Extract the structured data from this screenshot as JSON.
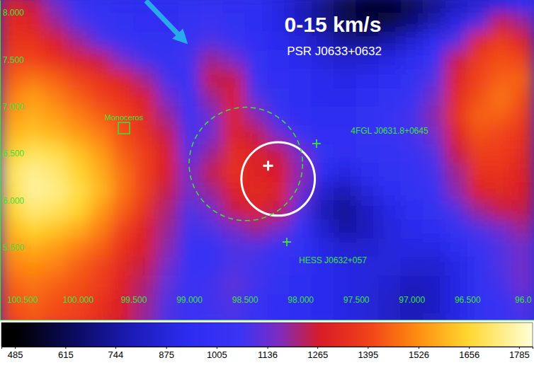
{
  "chart_data": {
    "type": "heatmap",
    "title": "0-15 km/s",
    "xlim": [
      100.7,
      95.9
    ],
    "ylim": [
      4.73,
      8.136
    ],
    "xticks": [
      {
        "value": 100.5,
        "label": "100.500"
      },
      {
        "value": 100.0,
        "label": "100.000"
      },
      {
        "value": 99.5,
        "label": "99.500"
      },
      {
        "value": 99.0,
        "label": "99.000"
      },
      {
        "value": 98.5,
        "label": "98.500"
      },
      {
        "value": 98.0,
        "label": "98.000"
      },
      {
        "value": 97.5,
        "label": "97.500"
      },
      {
        "value": 97.0,
        "label": "97.000"
      },
      {
        "value": 96.5,
        "label": "96.500"
      },
      {
        "value": 96.0,
        "label": "96.0"
      }
    ],
    "yticks": [
      {
        "value": 8.0,
        "label": "8.000"
      },
      {
        "value": 7.5,
        "label": "7.500"
      },
      {
        "value": 7.0,
        "label": "7.000"
      },
      {
        "value": 6.5,
        "label": "6.500"
      },
      {
        "value": 6.0,
        "label": "6.000"
      },
      {
        "value": 5.5,
        "label": "5.500"
      }
    ],
    "x_bins": [
      100.7,
      100.5,
      100.3,
      100.1,
      99.9,
      99.7,
      99.5,
      99.3,
      99.1,
      98.9,
      98.7,
      98.5,
      98.3,
      98.1,
      97.9,
      97.7,
      97.5,
      97.3,
      97.1,
      96.9,
      96.7,
      96.5,
      96.3,
      96.1,
      95.9
    ],
    "y_bins": [
      8.2,
      8.0,
      7.8,
      7.6,
      7.4,
      7.2,
      7.0,
      6.8,
      6.6,
      6.4,
      6.2,
      6.0,
      5.8,
      5.6,
      5.4,
      5.2,
      5.0,
      4.8,
      4.6
    ],
    "values": [
      [
        1300,
        1250,
        1150,
        1050,
        1000,
        980,
        950,
        960,
        1000,
        1020,
        980,
        950,
        900,
        800,
        700,
        600,
        560,
        560,
        620,
        700,
        800,
        850,
        900,
        950
      ],
      [
        1320,
        1300,
        1200,
        1100,
        1050,
        1000,
        980,
        980,
        1020,
        1050,
        1000,
        950,
        900,
        820,
        720,
        620,
        580,
        600,
        680,
        780,
        900,
        1100,
        1250,
        1200
      ],
      [
        1350,
        1350,
        1280,
        1200,
        1100,
        1050,
        1000,
        1000,
        1050,
        1100,
        1050,
        980,
        930,
        880,
        800,
        720,
        700,
        760,
        850,
        950,
        1100,
        1300,
        1380,
        1300
      ],
      [
        1400,
        1400,
        1350,
        1300,
        1250,
        1150,
        1080,
        1020,
        1080,
        1200,
        1150,
        1020,
        960,
        920,
        880,
        850,
        860,
        900,
        950,
        1050,
        1250,
        1380,
        1420,
        1400
      ],
      [
        1450,
        1480,
        1450,
        1400,
        1350,
        1300,
        1200,
        1080,
        1050,
        1250,
        1250,
        1050,
        980,
        950,
        920,
        900,
        920,
        950,
        1000,
        1100,
        1300,
        1400,
        1450,
        1450
      ],
      [
        1500,
        1550,
        1500,
        1450,
        1400,
        1350,
        1280,
        1150,
        1050,
        1200,
        1280,
        1100,
        1000,
        950,
        930,
        920,
        960,
        1000,
        1050,
        1150,
        1320,
        1420,
        1480,
        1420
      ],
      [
        1550,
        1580,
        1550,
        1500,
        1450,
        1400,
        1320,
        1200,
        1050,
        1150,
        1300,
        1180,
        1050,
        980,
        950,
        950,
        1000,
        1050,
        1080,
        1180,
        1350,
        1450,
        1450,
        1380
      ],
      [
        1600,
        1620,
        1600,
        1550,
        1500,
        1420,
        1350,
        1250,
        1080,
        1150,
        1300,
        1250,
        1150,
        1050,
        980,
        980,
        1020,
        1050,
        1080,
        1150,
        1300,
        1420,
        1400,
        1350
      ],
      [
        1650,
        1700,
        1680,
        1620,
        1550,
        1450,
        1380,
        1280,
        1100,
        1200,
        1330,
        1300,
        1250,
        1150,
        1000,
        980,
        1000,
        1020,
        1050,
        1100,
        1250,
        1380,
        1380,
        1320
      ],
      [
        1700,
        1750,
        1720,
        1650,
        1580,
        1480,
        1380,
        1280,
        1150,
        1250,
        1350,
        1300,
        1280,
        1180,
        950,
        900,
        950,
        1000,
        1020,
        1080,
        1200,
        1350,
        1350,
        1300
      ],
      [
        1680,
        1760,
        1740,
        1680,
        1600,
        1480,
        1380,
        1250,
        1150,
        1200,
        1300,
        1320,
        1300,
        1150,
        850,
        780,
        880,
        950,
        1000,
        1050,
        1180,
        1300,
        1320,
        1280
      ],
      [
        1650,
        1720,
        1700,
        1650,
        1550,
        1450,
        1350,
        1220,
        1100,
        1150,
        1250,
        1300,
        1250,
        1100,
        800,
        720,
        820,
        900,
        960,
        1000,
        1100,
        1200,
        1250,
        1250
      ],
      [
        1600,
        1650,
        1620,
        1580,
        1500,
        1400,
        1300,
        1200,
        1080,
        1100,
        1150,
        1200,
        1150,
        1050,
        850,
        750,
        800,
        880,
        920,
        950,
        1020,
        1100,
        1150,
        1200
      ],
      [
        1550,
        1580,
        1550,
        1500,
        1450,
        1350,
        1280,
        1180,
        1050,
        1050,
        1100,
        1100,
        1050,
        1000,
        900,
        850,
        850,
        880,
        900,
        900,
        950,
        1050,
        1100,
        1150
      ],
      [
        1500,
        1520,
        1500,
        1450,
        1400,
        1320,
        1250,
        1150,
        1050,
        1050,
        1100,
        1080,
        1020,
        980,
        920,
        900,
        880,
        880,
        850,
        850,
        900,
        1000,
        1100,
        1150
      ],
      [
        1450,
        1480,
        1450,
        1420,
        1380,
        1300,
        1220,
        1120,
        1050,
        1080,
        1120,
        1080,
        1000,
        950,
        920,
        900,
        880,
        850,
        800,
        820,
        900,
        1000,
        1080,
        1150
      ],
      [
        1420,
        1450,
        1420,
        1400,
        1350,
        1280,
        1200,
        1100,
        1050,
        1080,
        1100,
        1050,
        980,
        950,
        920,
        900,
        870,
        830,
        780,
        820,
        900,
        1000,
        1050,
        1100
      ],
      [
        1400,
        1430,
        1400,
        1380,
        1330,
        1270,
        1190,
        1100,
        1050,
        1070,
        1090,
        1040,
        980,
        950,
        920,
        900,
        870,
        830,
        790,
        830,
        900,
        990,
        1040,
        1090
      ]
    ],
    "colorbar": {
      "lim": [
        450,
        1820
      ],
      "ticks": [
        485,
        615,
        744,
        875,
        1005,
        1136,
        1265,
        1395,
        1526,
        1656,
        1785
      ]
    },
    "regions": [
      {
        "ra": 98.2,
        "dec": 6.23,
        "radius": 0.33,
        "color": "white",
        "line_style": "solid"
      },
      {
        "ra": 98.49,
        "dec": 6.39,
        "radius": 0.51,
        "color": "green",
        "line_style": "dashed"
      }
    ],
    "sources": [
      {
        "text": "PSR J0633+0632",
        "ra": 98.29,
        "dec": 6.37,
        "marker": "cross",
        "color": "white",
        "label_ra": 97.695,
        "label_dec": 7.593
      },
      {
        "text": "Monoceros",
        "ra": 99.586,
        "dec": 6.772,
        "marker": "square",
        "color": "green",
        "label_ra": 99.586,
        "label_dec": 6.885
      },
      {
        "text": "4FGL J0631.8+0645",
        "ra": 97.855,
        "dec": 6.607,
        "marker": "cross",
        "color": "green",
        "label_ra": 97.199,
        "label_dec": 6.742
      },
      {
        "text": "HESS J0632+057",
        "ra": 98.122,
        "dec": 5.559,
        "marker": "cross",
        "color": "green",
        "label_ra": 97.708,
        "label_dec": 5.363
      }
    ]
  }
}
